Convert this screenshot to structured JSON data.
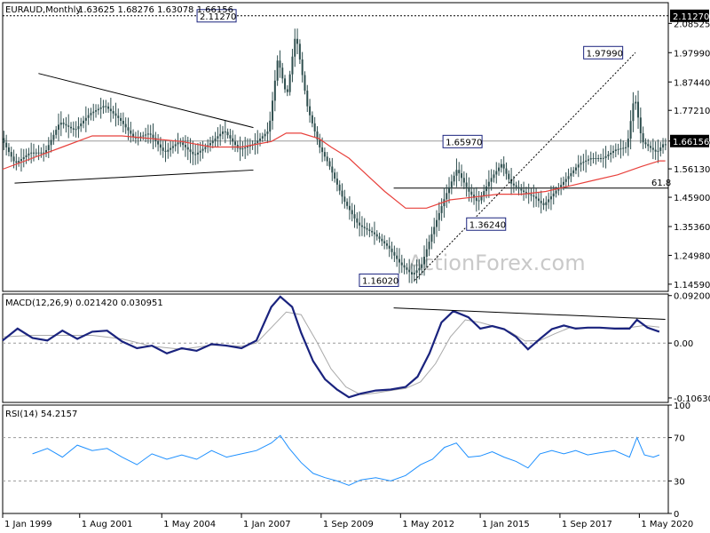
{
  "chart_data": [
    {
      "type": "candlestick",
      "title": "EURAUD,Monthly",
      "ohlc_text": "1.63625 1.68276 1.63078 1.66156",
      "ylim": [
        1.12,
        2.16
      ],
      "yticks": [
        "2.08525",
        "1.97990",
        "1.87440",
        "1.77210",
        "1.66156",
        "1.56130",
        "1.45900",
        "1.35360",
        "1.24980",
        "1.14590"
      ],
      "ytick_values": [
        2.08525,
        1.9799,
        1.8744,
        1.7721,
        1.66156,
        1.5613,
        1.459,
        1.3536,
        1.2498,
        1.1459
      ],
      "top_marker": "2.11270",
      "current_price": "1.66156",
      "fib_label": "61.8",
      "fib_value": 1.492,
      "annotations": [
        {
          "text": "2.11270",
          "value": 2.1127
        },
        {
          "text": "1.97990",
          "value": 1.9799
        },
        {
          "text": "1.65970",
          "value": 1.6597
        },
        {
          "text": "1.36240",
          "value": 1.3624
        },
        {
          "text": "1.16020",
          "value": 1.1602
        }
      ],
      "price_series": [
        [
          1999.0,
          1.68
        ],
        [
          1999.5,
          1.58
        ],
        [
          2000.0,
          1.62
        ],
        [
          2000.5,
          1.62
        ],
        [
          2001.0,
          1.73
        ],
        [
          2001.5,
          1.7
        ],
        [
          2002.0,
          1.76
        ],
        [
          2002.5,
          1.79
        ],
        [
          2003.0,
          1.74
        ],
        [
          2003.5,
          1.67
        ],
        [
          2004.0,
          1.69
        ],
        [
          2004.5,
          1.62
        ],
        [
          2005.0,
          1.66
        ],
        [
          2005.5,
          1.61
        ],
        [
          2006.0,
          1.65
        ],
        [
          2006.5,
          1.7
        ],
        [
          2007.0,
          1.63
        ],
        [
          2007.5,
          1.65
        ],
        [
          2008.0,
          1.7
        ],
        [
          2008.3,
          1.96
        ],
        [
          2008.6,
          1.82
        ],
        [
          2008.9,
          2.05
        ],
        [
          2009.3,
          1.78
        ],
        [
          2009.7,
          1.64
        ],
        [
          2010.0,
          1.58
        ],
        [
          2010.5,
          1.45
        ],
        [
          2011.0,
          1.36
        ],
        [
          2011.5,
          1.33
        ],
        [
          2012.0,
          1.28
        ],
        [
          2012.4,
          1.22
        ],
        [
          2012.8,
          1.18
        ],
        [
          2013.1,
          1.21
        ],
        [
          2013.5,
          1.34
        ],
        [
          2013.9,
          1.46
        ],
        [
          2014.3,
          1.56
        ],
        [
          2014.7,
          1.48
        ],
        [
          2015.0,
          1.44
        ],
        [
          2015.4,
          1.52
        ],
        [
          2015.8,
          1.58
        ],
        [
          2016.1,
          1.51
        ],
        [
          2016.5,
          1.48
        ],
        [
          2016.9,
          1.46
        ],
        [
          2017.2,
          1.43
        ],
        [
          2017.6,
          1.48
        ],
        [
          2018.0,
          1.53
        ],
        [
          2018.4,
          1.58
        ],
        [
          2018.8,
          1.6
        ],
        [
          2019.2,
          1.6
        ],
        [
          2019.6,
          1.63
        ],
        [
          2020.0,
          1.64
        ],
        [
          2020.25,
          1.83
        ],
        [
          2020.5,
          1.66
        ],
        [
          2020.75,
          1.64
        ],
        [
          2021.0,
          1.62
        ],
        [
          2021.2,
          1.65
        ]
      ],
      "ma_series": [
        [
          1999.0,
          1.56
        ],
        [
          2000.0,
          1.6
        ],
        [
          2001.0,
          1.64
        ],
        [
          2002.0,
          1.68
        ],
        [
          2003.0,
          1.68
        ],
        [
          2004.0,
          1.67
        ],
        [
          2005.0,
          1.66
        ],
        [
          2006.0,
          1.64
        ],
        [
          2007.0,
          1.64
        ],
        [
          2008.0,
          1.66
        ],
        [
          2008.5,
          1.69
        ],
        [
          2009.0,
          1.69
        ],
        [
          2009.6,
          1.67
        ],
        [
          2010.0,
          1.64
        ],
        [
          2010.6,
          1.6
        ],
        [
          2011.2,
          1.54
        ],
        [
          2011.8,
          1.48
        ],
        [
          2012.5,
          1.42
        ],
        [
          2013.2,
          1.42
        ],
        [
          2014.0,
          1.45
        ],
        [
          2014.8,
          1.46
        ],
        [
          2015.6,
          1.47
        ],
        [
          2016.4,
          1.47
        ],
        [
          2017.2,
          1.48
        ],
        [
          2018.0,
          1.5
        ],
        [
          2018.8,
          1.52
        ],
        [
          2019.6,
          1.54
        ],
        [
          2020.4,
          1.57
        ],
        [
          2021.0,
          1.59
        ],
        [
          2021.2,
          1.59
        ]
      ]
    },
    {
      "type": "line",
      "title": "MACD(12,26,9) 0.021420 0.030951",
      "ylim": [
        -0.115,
        0.095
      ],
      "yticks": [
        "0.092004",
        "0.00",
        "-0.106308"
      ],
      "ytick_values": [
        0.092004,
        0.0,
        -0.106308
      ],
      "series": [
        {
          "values": [
            [
              1999.0,
              0.005
            ],
            [
              1999.5,
              0.028
            ],
            [
              2000.0,
              0.01
            ],
            [
              2000.5,
              0.005
            ],
            [
              2001.0,
              0.024
            ],
            [
              2001.5,
              0.008
            ],
            [
              2002.0,
              0.022
            ],
            [
              2002.5,
              0.024
            ],
            [
              2003.0,
              0.003
            ],
            [
              2003.5,
              -0.01
            ],
            [
              2004.0,
              -0.005
            ],
            [
              2004.5,
              -0.02
            ],
            [
              2005.0,
              -0.01
            ],
            [
              2005.5,
              -0.015
            ],
            [
              2006.0,
              -0.002
            ],
            [
              2006.5,
              -0.005
            ],
            [
              2007.0,
              -0.01
            ],
            [
              2007.5,
              0.005
            ],
            [
              2008.0,
              0.07
            ],
            [
              2008.3,
              0.09
            ],
            [
              2008.7,
              0.07
            ],
            [
              2009.0,
              0.02
            ],
            [
              2009.4,
              -0.035
            ],
            [
              2009.8,
              -0.07
            ],
            [
              2010.2,
              -0.09
            ],
            [
              2010.6,
              -0.105
            ],
            [
              2011.0,
              -0.098
            ],
            [
              2011.5,
              -0.092
            ],
            [
              2012.0,
              -0.09
            ],
            [
              2012.5,
              -0.085
            ],
            [
              2012.9,
              -0.065
            ],
            [
              2013.3,
              -0.02
            ],
            [
              2013.7,
              0.04
            ],
            [
              2014.1,
              0.062
            ],
            [
              2014.6,
              0.05
            ],
            [
              2015.0,
              0.028
            ],
            [
              2015.4,
              0.033
            ],
            [
              2015.8,
              0.027
            ],
            [
              2016.2,
              0.012
            ],
            [
              2016.6,
              -0.012
            ],
            [
              2017.0,
              0.008
            ],
            [
              2017.4,
              0.027
            ],
            [
              2017.8,
              0.034
            ],
            [
              2018.2,
              0.028
            ],
            [
              2018.6,
              0.03
            ],
            [
              2019.0,
              0.03
            ],
            [
              2019.5,
              0.028
            ],
            [
              2020.0,
              0.028
            ],
            [
              2020.25,
              0.045
            ],
            [
              2020.6,
              0.03
            ],
            [
              2021.0,
              0.022
            ]
          ]
        },
        {
          "values": [
            [
              1999.0,
              0.012
            ],
            [
              2000.0,
              0.015
            ],
            [
              2001.0,
              0.015
            ],
            [
              2002.0,
              0.015
            ],
            [
              2003.0,
              0.008
            ],
            [
              2004.0,
              -0.006
            ],
            [
              2005.0,
              -0.012
            ],
            [
              2006.0,
              -0.004
            ],
            [
              2007.0,
              -0.006
            ],
            [
              2007.5,
              0.0
            ],
            [
              2008.0,
              0.03
            ],
            [
              2008.5,
              0.06
            ],
            [
              2009.0,
              0.055
            ],
            [
              2009.5,
              0.005
            ],
            [
              2010.0,
              -0.05
            ],
            [
              2010.5,
              -0.085
            ],
            [
              2011.0,
              -0.1
            ],
            [
              2011.5,
              -0.097
            ],
            [
              2012.0,
              -0.092
            ],
            [
              2012.5,
              -0.088
            ],
            [
              2013.0,
              -0.075
            ],
            [
              2013.5,
              -0.04
            ],
            [
              2014.0,
              0.012
            ],
            [
              2014.5,
              0.045
            ],
            [
              2015.0,
              0.04
            ],
            [
              2015.5,
              0.032
            ],
            [
              2016.0,
              0.022
            ],
            [
              2016.5,
              0.004
            ],
            [
              2017.0,
              0.005
            ],
            [
              2017.5,
              0.018
            ],
            [
              2018.0,
              0.03
            ],
            [
              2018.5,
              0.029
            ],
            [
              2019.0,
              0.03
            ],
            [
              2019.5,
              0.029
            ],
            [
              2020.0,
              0.03
            ],
            [
              2020.5,
              0.034
            ],
            [
              2021.0,
              0.031
            ]
          ]
        }
      ]
    },
    {
      "type": "line",
      "title": "RSI(14) 54.2157",
      "ylim": [
        0,
        100
      ],
      "yticks": [
        "100",
        "70",
        "30",
        "0"
      ],
      "ytick_values": [
        100,
        70,
        30,
        0
      ],
      "series": [
        {
          "values": [
            [
              2000.0,
              55
            ],
            [
              2000.5,
              60
            ],
            [
              2001.0,
              52
            ],
            [
              2001.5,
              63
            ],
            [
              2002.0,
              58
            ],
            [
              2002.5,
              60
            ],
            [
              2003.0,
              52
            ],
            [
              2003.5,
              45
            ],
            [
              2004.0,
              55
            ],
            [
              2004.5,
              50
            ],
            [
              2005.0,
              54
            ],
            [
              2005.5,
              50
            ],
            [
              2006.0,
              58
            ],
            [
              2006.5,
              52
            ],
            [
              2007.0,
              55
            ],
            [
              2007.5,
              58
            ],
            [
              2008.0,
              65
            ],
            [
              2008.3,
              72
            ],
            [
              2008.6,
              60
            ],
            [
              2009.0,
              47
            ],
            [
              2009.4,
              37
            ],
            [
              2009.8,
              33
            ],
            [
              2010.2,
              30
            ],
            [
              2010.6,
              26
            ],
            [
              2011.0,
              31
            ],
            [
              2011.5,
              33
            ],
            [
              2012.0,
              30
            ],
            [
              2012.5,
              35
            ],
            [
              2013.0,
              45
            ],
            [
              2013.4,
              50
            ],
            [
              2013.8,
              61
            ],
            [
              2014.2,
              65
            ],
            [
              2014.6,
              52
            ],
            [
              2015.0,
              53
            ],
            [
              2015.4,
              57
            ],
            [
              2015.8,
              52
            ],
            [
              2016.2,
              48
            ],
            [
              2016.6,
              42
            ],
            [
              2017.0,
              55
            ],
            [
              2017.4,
              58
            ],
            [
              2017.8,
              55
            ],
            [
              2018.2,
              58
            ],
            [
              2018.6,
              54
            ],
            [
              2019.0,
              56
            ],
            [
              2019.5,
              58
            ],
            [
              2020.0,
              52
            ],
            [
              2020.25,
              70
            ],
            [
              2020.5,
              54
            ],
            [
              2020.8,
              52
            ],
            [
              2021.0,
              54
            ]
          ]
        }
      ]
    }
  ],
  "x_axis": {
    "ticks": [
      "1 Jan 1999",
      "1 Aug 2001",
      "1 May 2004",
      "1 Jan 2007",
      "1 Sep 2009",
      "1 May 2012",
      "1 Jan 2015",
      "1 Sep 2017",
      "1 May 2020"
    ],
    "tick_values": [
      1999.0,
      2001.58,
      2004.33,
      2007.0,
      2009.67,
      2012.33,
      2015.0,
      2017.67,
      2020.33
    ],
    "range": [
      1999.0,
      2021.3
    ]
  },
  "watermark": "ActionForex.com",
  "colors": {
    "candle": "#2f4f4f",
    "ma": "#e8413c",
    "macd": "#1a237e",
    "signal": "#a9a9a9",
    "rsi": "#1e90ff",
    "trend": "#000000",
    "grid": "#b0b0b0"
  }
}
